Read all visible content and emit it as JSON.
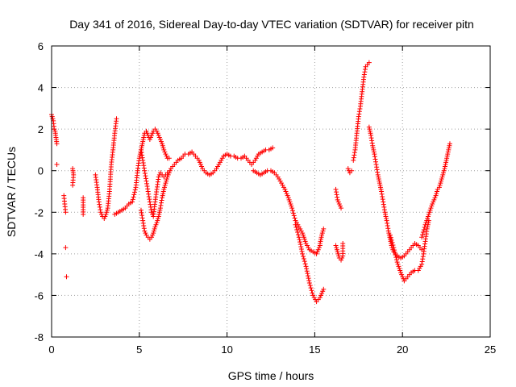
{
  "chart_data": {
    "type": "scatter",
    "title": "Day 341 of 2016, Sidereal Day-to-day VTEC variation (SDTVAR) for receiver pitn",
    "xlabel": "GPS time / hours",
    "ylabel": "SDTVAR / TECUs",
    "xlim": [
      0,
      25
    ],
    "ylim": [
      -8,
      6
    ],
    "xticks": [
      0,
      5,
      10,
      15,
      20,
      25
    ],
    "yticks": [
      -8,
      -6,
      -4,
      -2,
      0,
      2,
      4,
      6
    ],
    "grid": true,
    "marker": "plus",
    "series": [
      {
        "name": "SDTVAR",
        "color": "#ff0000",
        "segments": [
          [
            [
              0.0,
              2.7
            ],
            [
              0.1,
              2.4
            ],
            [
              0.15,
              2.0
            ],
            [
              0.2,
              1.9
            ],
            [
              0.25,
              1.6
            ],
            [
              0.3,
              1.3
            ]
          ],
          [
            [
              0.7,
              -1.2
            ],
            [
              0.75,
              -1.6
            ],
            [
              0.8,
              -2.0
            ]
          ],
          [
            [
              0.8,
              -3.7
            ]
          ],
          [
            [
              0.85,
              -5.1
            ]
          ],
          [
            [
              0.3,
              0.3
            ]
          ],
          [
            [
              1.2,
              0.1
            ],
            [
              1.25,
              -0.2
            ],
            [
              1.2,
              -0.7
            ]
          ],
          [
            [
              1.8,
              -1.3
            ],
            [
              1.8,
              -2.1
            ]
          ],
          [
            [
              2.5,
              -0.2
            ],
            [
              2.6,
              -0.8
            ],
            [
              2.7,
              -1.5
            ],
            [
              2.8,
              -2.0
            ],
            [
              2.9,
              -2.2
            ],
            [
              3.0,
              -2.3
            ],
            [
              3.1,
              -2.1
            ],
            [
              3.2,
              -1.8
            ],
            [
              3.3,
              -1.0
            ],
            [
              3.4,
              0.3
            ],
            [
              3.5,
              1.0
            ],
            [
              3.6,
              1.8
            ],
            [
              3.7,
              2.5
            ]
          ],
          [
            [
              3.6,
              -2.1
            ],
            [
              3.8,
              -2.0
            ],
            [
              4.0,
              -1.9
            ],
            [
              4.2,
              -1.8
            ],
            [
              4.4,
              -1.6
            ],
            [
              4.6,
              -1.5
            ],
            [
              4.8,
              -0.8
            ],
            [
              4.9,
              0.0
            ],
            [
              5.0,
              0.6
            ],
            [
              5.1,
              1.0
            ],
            [
              5.2,
              1.4
            ],
            [
              5.3,
              1.8
            ],
            [
              5.4,
              1.9
            ],
            [
              5.5,
              1.7
            ],
            [
              5.6,
              1.5
            ],
            [
              5.7,
              1.7
            ],
            [
              5.8,
              1.9
            ],
            [
              5.9,
              2.0
            ],
            [
              6.0,
              1.9
            ],
            [
              6.1,
              1.7
            ],
            [
              6.2,
              1.5
            ],
            [
              6.3,
              1.3
            ],
            [
              6.4,
              1.0
            ],
            [
              6.5,
              0.8
            ],
            [
              6.6,
              0.6
            ],
            [
              6.7,
              0.6
            ]
          ],
          [
            [
              5.1,
              -1.9
            ],
            [
              5.2,
              -2.4
            ],
            [
              5.3,
              -2.9
            ],
            [
              5.4,
              -3.1
            ],
            [
              5.5,
              -3.2
            ],
            [
              5.6,
              -3.3
            ],
            [
              5.7,
              -3.2
            ],
            [
              5.8,
              -3.0
            ],
            [
              5.9,
              -2.7
            ],
            [
              6.0,
              -2.5
            ],
            [
              6.1,
              -2.2
            ],
            [
              6.2,
              -1.8
            ],
            [
              6.3,
              -1.3
            ],
            [
              6.4,
              -0.9
            ],
            [
              6.5,
              -0.6
            ],
            [
              6.6,
              -0.3
            ],
            [
              6.7,
              -0.1
            ],
            [
              6.8,
              0.1
            ],
            [
              6.9,
              0.2
            ],
            [
              7.0,
              0.3
            ],
            [
              7.2,
              0.5
            ],
            [
              7.4,
              0.6
            ],
            [
              7.6,
              0.8
            ],
            [
              7.8,
              0.8
            ],
            [
              8.0,
              0.9
            ],
            [
              8.2,
              0.7
            ],
            [
              8.4,
              0.5
            ],
            [
              8.6,
              0.1
            ],
            [
              8.8,
              -0.1
            ],
            [
              9.0,
              -0.2
            ],
            [
              9.2,
              -0.1
            ],
            [
              9.4,
              0.1
            ],
            [
              9.6,
              0.4
            ],
            [
              9.8,
              0.7
            ],
            [
              10.0,
              0.8
            ],
            [
              10.2,
              0.7
            ],
            [
              10.4,
              0.7
            ],
            [
              10.6,
              0.6
            ],
            [
              10.8,
              0.6
            ],
            [
              11.0,
              0.7
            ],
            [
              11.2,
              0.5
            ],
            [
              11.4,
              0.3
            ],
            [
              11.6,
              0.5
            ],
            [
              11.8,
              0.8
            ],
            [
              12.0,
              0.9
            ],
            [
              12.2,
              1.0
            ],
            [
              12.4,
              1.0
            ],
            [
              12.6,
              1.1
            ]
          ],
          [
            [
              5.1,
              1.0
            ],
            [
              5.2,
              0.5
            ],
            [
              5.3,
              0.0
            ],
            [
              5.4,
              -0.5
            ],
            [
              5.5,
              -1.0
            ],
            [
              5.6,
              -1.5
            ],
            [
              5.7,
              -2.0
            ],
            [
              5.8,
              -2.2
            ],
            [
              5.9,
              -1.5
            ],
            [
              6.0,
              -0.9
            ],
            [
              6.1,
              -0.3
            ],
            [
              6.2,
              -0.1
            ],
            [
              6.3,
              -0.2
            ],
            [
              6.4,
              -0.3
            ],
            [
              6.5,
              -0.2
            ],
            [
              6.6,
              -0.1
            ]
          ],
          [
            [
              11.5,
              0.0
            ],
            [
              11.7,
              -0.1
            ],
            [
              11.9,
              -0.2
            ],
            [
              12.1,
              -0.1
            ],
            [
              12.3,
              0.0
            ],
            [
              12.5,
              0.0
            ],
            [
              12.7,
              -0.1
            ],
            [
              12.9,
              -0.3
            ],
            [
              13.1,
              -0.6
            ],
            [
              13.3,
              -0.9
            ],
            [
              13.5,
              -1.3
            ],
            [
              13.7,
              -1.8
            ],
            [
              13.9,
              -2.4
            ],
            [
              14.1,
              -2.7
            ],
            [
              14.3,
              -3.0
            ],
            [
              14.5,
              -3.5
            ],
            [
              14.7,
              -3.8
            ],
            [
              14.9,
              -3.9
            ],
            [
              15.1,
              -4.0
            ],
            [
              15.2,
              -3.8
            ],
            [
              15.3,
              -3.6
            ]
          ],
          [
            [
              13.9,
              -2.6
            ],
            [
              14.1,
              -3.2
            ],
            [
              14.3,
              -4.0
            ],
            [
              14.5,
              -4.6
            ],
            [
              14.7,
              -5.4
            ],
            [
              14.9,
              -6.0
            ],
            [
              15.1,
              -6.3
            ],
            [
              15.3,
              -6.1
            ],
            [
              15.5,
              -5.7
            ]
          ],
          [
            [
              15.3,
              -3.5
            ],
            [
              15.4,
              -3.1
            ],
            [
              15.5,
              -2.8
            ]
          ],
          [
            [
              16.2,
              -0.9
            ],
            [
              16.3,
              -1.4
            ],
            [
              16.4,
              -1.6
            ],
            [
              16.5,
              -1.8
            ]
          ],
          [
            [
              16.2,
              -3.6
            ],
            [
              16.3,
              -3.9
            ],
            [
              16.4,
              -4.2
            ],
            [
              16.5,
              -4.3
            ],
            [
              16.6,
              -4.1
            ],
            [
              16.6,
              -3.5
            ]
          ],
          [
            [
              16.9,
              0.1
            ],
            [
              17.0,
              -0.1
            ],
            [
              17.1,
              0.0
            ]
          ],
          [
            [
              17.2,
              0.5
            ],
            [
              17.3,
              1.0
            ],
            [
              17.4,
              1.8
            ],
            [
              17.5,
              2.6
            ],
            [
              17.6,
              3.1
            ],
            [
              17.7,
              3.8
            ],
            [
              17.8,
              4.5
            ],
            [
              17.9,
              5.0
            ],
            [
              18.0,
              5.1
            ],
            [
              18.1,
              5.2
            ]
          ],
          [
            [
              18.1,
              2.1
            ],
            [
              18.2,
              1.7
            ],
            [
              18.3,
              1.2
            ],
            [
              18.4,
              0.8
            ],
            [
              18.5,
              0.3
            ],
            [
              18.6,
              -0.2
            ],
            [
              18.7,
              -0.6
            ],
            [
              18.8,
              -1.0
            ],
            [
              18.9,
              -1.5
            ],
            [
              19.0,
              -2.0
            ],
            [
              19.1,
              -2.4
            ],
            [
              19.2,
              -2.9
            ],
            [
              19.3,
              -3.3
            ],
            [
              19.4,
              -3.7
            ],
            [
              19.5,
              -3.9
            ],
            [
              19.7,
              -4.1
            ],
            [
              19.9,
              -4.2
            ],
            [
              20.1,
              -4.1
            ],
            [
              20.3,
              -3.9
            ],
            [
              20.5,
              -3.7
            ],
            [
              20.7,
              -3.5
            ],
            [
              20.9,
              -3.6
            ],
            [
              21.1,
              -3.8
            ]
          ],
          [
            [
              19.3,
              -3.1
            ],
            [
              19.5,
              -3.7
            ],
            [
              19.7,
              -4.4
            ],
            [
              19.9,
              -4.9
            ],
            [
              20.1,
              -5.3
            ],
            [
              20.3,
              -5.1
            ],
            [
              20.5,
              -4.9
            ],
            [
              20.7,
              -4.8
            ],
            [
              20.9,
              -4.8
            ],
            [
              21.1,
              -4.5
            ],
            [
              21.2,
              -4.0
            ],
            [
              21.3,
              -3.4
            ],
            [
              21.4,
              -2.8
            ],
            [
              21.5,
              -2.4
            ]
          ],
          [
            [
              21.1,
              -3.2
            ],
            [
              21.3,
              -2.6
            ],
            [
              21.5,
              -2.1
            ],
            [
              21.7,
              -1.6
            ],
            [
              21.9,
              -1.2
            ],
            [
              22.0,
              -0.9
            ],
            [
              22.1,
              -0.8
            ],
            [
              22.2,
              -0.5
            ],
            [
              22.3,
              -0.2
            ],
            [
              22.4,
              0.1
            ],
            [
              22.5,
              0.5
            ],
            [
              22.6,
              0.9
            ],
            [
              22.7,
              1.3
            ]
          ]
        ]
      }
    ]
  }
}
